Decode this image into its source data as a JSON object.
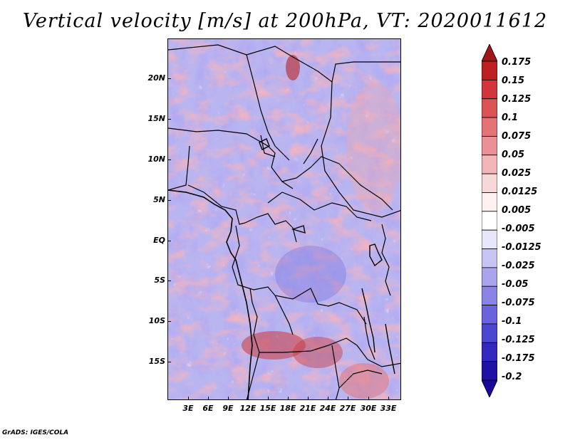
{
  "title": "Vertical velocity [m/s] at 200hPa, VT: 2020011612",
  "footer": "GrADS: IGES/COLA",
  "lat_labels": [
    "20N",
    "15N",
    "10N",
    "5N",
    "EQ",
    "5S",
    "10S",
    "15S"
  ],
  "lon_labels": [
    "3E",
    "6E",
    "9E",
    "12E",
    "15E",
    "18E",
    "21E",
    "24E",
    "27E",
    "30E",
    "33E"
  ],
  "colorbar": {
    "labels": [
      "0.175",
      "0.15",
      "0.125",
      "0.1",
      "0.075",
      "0.05",
      "0.025",
      "0.0125",
      "0.005",
      "-0.005",
      "-0.0125",
      "-0.025",
      "-0.05",
      "-0.075",
      "-0.1",
      "-0.125",
      "-0.175",
      "-0.2"
    ],
    "colors": [
      "#a01518",
      "#be1e22",
      "#d0363a",
      "#db5256",
      "#e37377",
      "#ea9195",
      "#f2b6b8",
      "#f8d7d8",
      "#fdf1f1",
      "#ffffff",
      "#e8e6fa",
      "#c8c4f3",
      "#a9a4ec",
      "#8a84e4",
      "#6a63dc",
      "#4b45cf",
      "#3327be",
      "#1f11a4",
      "#17079a"
    ]
  },
  "map": {
    "lon_range": [
      0,
      35
    ],
    "lat_range": [
      -19.5,
      25
    ],
    "field_colors": {
      "positive": "#ef9a9c",
      "negative": "#8e89e6",
      "neutral": "#ffffff"
    }
  }
}
